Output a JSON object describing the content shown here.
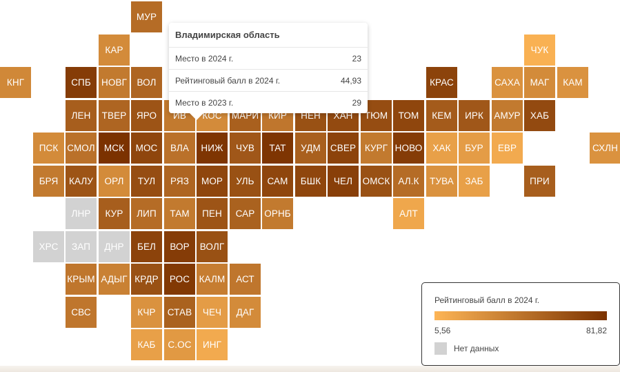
{
  "colors": {
    "low": "#fdb556",
    "high": "#7b3200",
    "nodata": "#d2d2d2"
  },
  "regions": [
    {
      "id": "МУР",
      "col": 4,
      "row": 0,
      "score": 48
    },
    {
      "id": "КАР",
      "col": 3,
      "row": 1,
      "score": 30
    },
    {
      "id": "ЧУК",
      "col": 16,
      "row": 1,
      "score": 8
    },
    {
      "id": "КНГ",
      "col": 0,
      "row": 2,
      "score": 32
    },
    {
      "id": "СПБ",
      "col": 2,
      "row": 2,
      "score": 76
    },
    {
      "id": "НОВГ",
      "col": 3,
      "row": 2,
      "score": 40
    },
    {
      "id": "ВОЛ",
      "col": 4,
      "row": 2,
      "score": 52
    },
    {
      "id": "КРАС",
      "col": 13,
      "row": 2,
      "score": 72
    },
    {
      "id": "САХА",
      "col": 15,
      "row": 2,
      "score": 26
    },
    {
      "id": "МАГ",
      "col": 16,
      "row": 2,
      "score": 30
    },
    {
      "id": "КАМ",
      "col": 17,
      "row": 2,
      "score": 26
    },
    {
      "id": "ЛЕН",
      "col": 2,
      "row": 3,
      "score": 56
    },
    {
      "id": "ТВЕР",
      "col": 3,
      "row": 3,
      "score": 52
    },
    {
      "id": "ЯРО",
      "col": 4,
      "row": 3,
      "score": 62
    },
    {
      "id": "ИВ",
      "col": 5,
      "row": 3,
      "score": 40
    },
    {
      "id": "КОС",
      "col": 6,
      "row": 3,
      "score": 30
    },
    {
      "id": "МАРИ",
      "col": 7,
      "row": 3,
      "score": 55
    },
    {
      "id": "КИР",
      "col": 8,
      "row": 3,
      "score": 42
    },
    {
      "id": "НЕН",
      "col": 9,
      "row": 3,
      "score": 64
    },
    {
      "id": "ХАН",
      "col": 10,
      "row": 3,
      "score": 68
    },
    {
      "id": "ТЮМ",
      "col": 11,
      "row": 3,
      "score": 66
    },
    {
      "id": "ТОМ",
      "col": 12,
      "row": 3,
      "score": 70
    },
    {
      "id": "КЕМ",
      "col": 13,
      "row": 3,
      "score": 58
    },
    {
      "id": "ИРК",
      "col": 14,
      "row": 3,
      "score": 60
    },
    {
      "id": "АМУР",
      "col": 15,
      "row": 3,
      "score": 40
    },
    {
      "id": "ХАБ",
      "col": 16,
      "row": 3,
      "score": 68
    },
    {
      "id": "ПСК",
      "col": 1,
      "row": 4,
      "score": 30
    },
    {
      "id": "СМОЛ",
      "col": 2,
      "row": 4,
      "score": 45
    },
    {
      "id": "МСК",
      "col": 3,
      "row": 4,
      "score": 82
    },
    {
      "id": "МОС",
      "col": 4,
      "row": 4,
      "score": 70
    },
    {
      "id": "ВЛА",
      "col": 5,
      "row": 4,
      "score": 44.93
    },
    {
      "id": "НИЖ",
      "col": 6,
      "row": 4,
      "score": 80
    },
    {
      "id": "ЧУВ",
      "col": 7,
      "row": 4,
      "score": 60
    },
    {
      "id": "ТАТ",
      "col": 8,
      "row": 4,
      "score": 80
    },
    {
      "id": "УДМ",
      "col": 9,
      "row": 4,
      "score": 55
    },
    {
      "id": "СВЕР",
      "col": 10,
      "row": 4,
      "score": 72
    },
    {
      "id": "КУРГ",
      "col": 11,
      "row": 4,
      "score": 40
    },
    {
      "id": "НОВО",
      "col": 12,
      "row": 4,
      "score": 76
    },
    {
      "id": "ХАК",
      "col": 13,
      "row": 4,
      "score": 18
    },
    {
      "id": "БУР",
      "col": 14,
      "row": 4,
      "score": 20
    },
    {
      "id": "ЕВР",
      "col": 15,
      "row": 4,
      "score": 12
    },
    {
      "id": "СХЛН",
      "col": 18,
      "row": 4,
      "score": 26
    },
    {
      "id": "БРЯ",
      "col": 1,
      "row": 5,
      "score": 40
    },
    {
      "id": "КАЛУ",
      "col": 2,
      "row": 5,
      "score": 62
    },
    {
      "id": "ОРЛ",
      "col": 3,
      "row": 5,
      "score": 30
    },
    {
      "id": "ТУЛ",
      "col": 4,
      "row": 5,
      "score": 66
    },
    {
      "id": "РЯЗ",
      "col": 5,
      "row": 5,
      "score": 52
    },
    {
      "id": "МОР",
      "col": 6,
      "row": 5,
      "score": 70
    },
    {
      "id": "УЛЬ",
      "col": 7,
      "row": 5,
      "score": 64
    },
    {
      "id": "САМ",
      "col": 8,
      "row": 5,
      "score": 70
    },
    {
      "id": "БШК",
      "col": 9,
      "row": 5,
      "score": 70
    },
    {
      "id": "ЧЕЛ",
      "col": 10,
      "row": 5,
      "score": 74
    },
    {
      "id": "ОМСК",
      "col": 11,
      "row": 5,
      "score": 64
    },
    {
      "id": "АЛ.К",
      "col": 12,
      "row": 5,
      "score": 48
    },
    {
      "id": "ТУВА",
      "col": 13,
      "row": 5,
      "score": 26
    },
    {
      "id": "ЗАБ",
      "col": 14,
      "row": 5,
      "score": 18
    },
    {
      "id": "ПРИ",
      "col": 16,
      "row": 5,
      "score": 56
    },
    {
      "id": "ЛНР",
      "col": 2,
      "row": 6,
      "score": null
    },
    {
      "id": "КУР",
      "col": 3,
      "row": 6,
      "score": 56
    },
    {
      "id": "ЛИП",
      "col": 4,
      "row": 6,
      "score": 48
    },
    {
      "id": "ТАМ",
      "col": 5,
      "row": 6,
      "score": 40
    },
    {
      "id": "ПЕН",
      "col": 6,
      "row": 6,
      "score": 62
    },
    {
      "id": "САР",
      "col": 7,
      "row": 6,
      "score": 54
    },
    {
      "id": "ОРНБ",
      "col": 8,
      "row": 6,
      "score": 40
    },
    {
      "id": "АЛТ",
      "col": 12,
      "row": 6,
      "score": 14
    },
    {
      "id": "ХРС",
      "col": 1,
      "row": 7,
      "score": null
    },
    {
      "id": "ЗАП",
      "col": 2,
      "row": 7,
      "score": null
    },
    {
      "id": "ДНР",
      "col": 3,
      "row": 7,
      "score": null
    },
    {
      "id": "БЕЛ",
      "col": 4,
      "row": 7,
      "score": 72
    },
    {
      "id": "ВОР",
      "col": 5,
      "row": 7,
      "score": 76
    },
    {
      "id": "ВОЛГ",
      "col": 6,
      "row": 7,
      "score": 64
    },
    {
      "id": "КРЫМ",
      "col": 2,
      "row": 8,
      "score": 42
    },
    {
      "id": "АДЫГ",
      "col": 3,
      "row": 8,
      "score": 36
    },
    {
      "id": "КРДР",
      "col": 4,
      "row": 8,
      "score": 64
    },
    {
      "id": "РОС",
      "col": 5,
      "row": 8,
      "score": 78
    },
    {
      "id": "КАЛМ",
      "col": 6,
      "row": 8,
      "score": 38
    },
    {
      "id": "АСТ",
      "col": 7,
      "row": 8,
      "score": 42
    },
    {
      "id": "СВС",
      "col": 2,
      "row": 9,
      "score": 42
    },
    {
      "id": "КЧР",
      "col": 4,
      "row": 9,
      "score": 26
    },
    {
      "id": "СТАВ",
      "col": 5,
      "row": 9,
      "score": 54
    },
    {
      "id": "ЧЕЧ",
      "col": 6,
      "row": 9,
      "score": 20
    },
    {
      "id": "ДАГ",
      "col": 7,
      "row": 9,
      "score": 30
    },
    {
      "id": "КАБ",
      "col": 4,
      "row": 10,
      "score": 18
    },
    {
      "id": "С.ОС",
      "col": 5,
      "row": 10,
      "score": 22
    },
    {
      "id": "ИНГ",
      "col": 6,
      "row": 10,
      "score": 12
    }
  ],
  "tooltip": {
    "title": "Владимирская область",
    "rows": [
      {
        "label": "Место в 2024 г.",
        "value": "23"
      },
      {
        "label": "Рейтинговый балл в 2024 г.",
        "value": "44,93"
      },
      {
        "label": "Место в 2023 г.",
        "value": "29"
      }
    ]
  },
  "legend": {
    "title": "Рейтинговый балл в 2024 г.",
    "min_label": "5,56",
    "max_label": "81,82",
    "min": 5.56,
    "max": 81.82,
    "nodata_label": "Нет данных"
  }
}
